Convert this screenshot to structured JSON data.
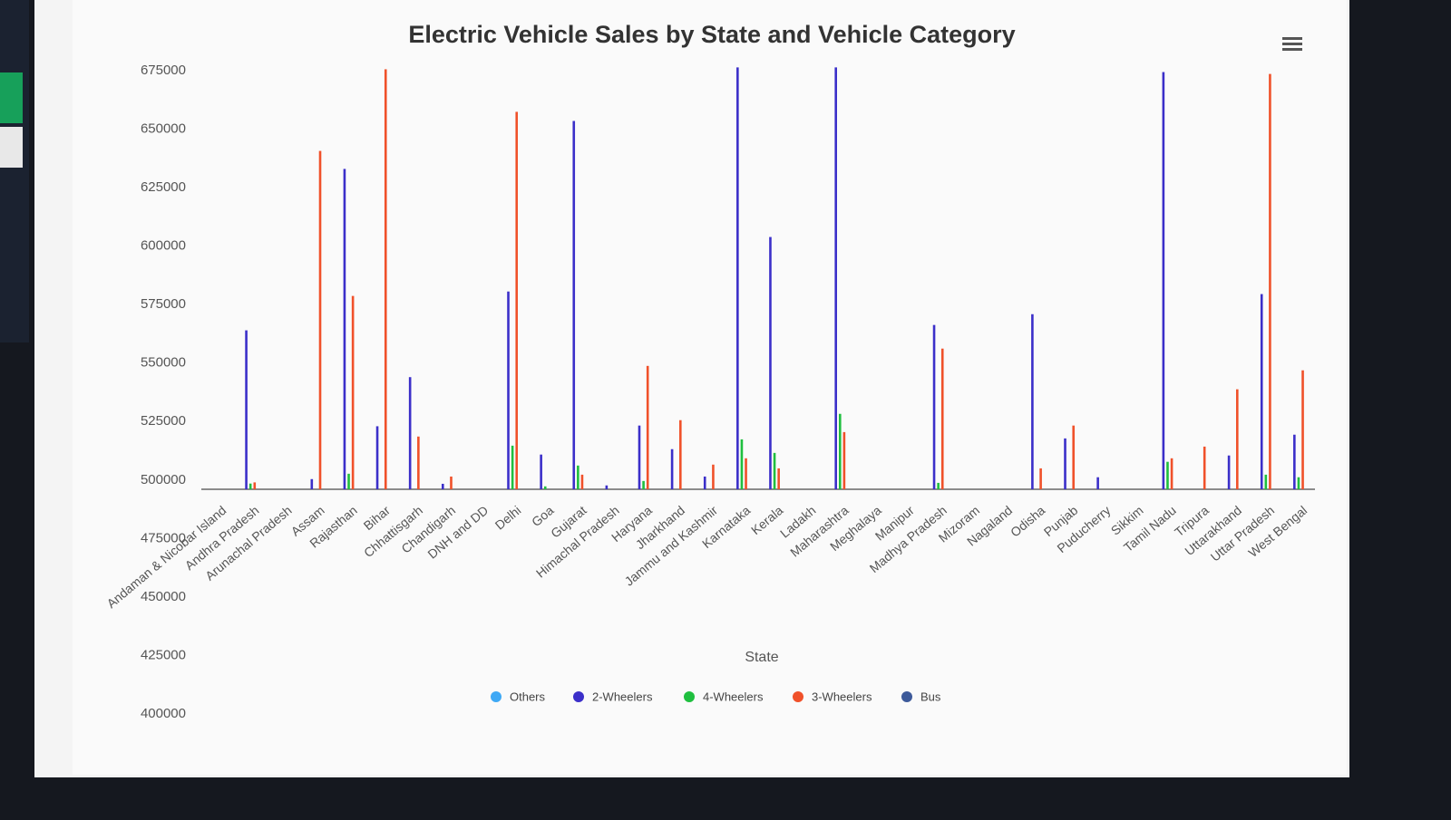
{
  "chart_data": {
    "type": "bar",
    "title": "Electric Vehicle Sales by State and Vehicle Category",
    "x_label": "State",
    "categories": [
      "Andaman & Nicobar Island",
      "Andhra Pradesh",
      "Arunachal Pradesh",
      "Assam",
      "Rajasthan",
      "Bihar",
      "Chhattisgarh",
      "Chandigarh",
      "DNH and DD",
      "Delhi",
      "Goa",
      "Gujarat",
      "Himachal Pradesh",
      "Haryana",
      "Jharkhand",
      "Jammu and Kashmir",
      "Karnataka",
      "Kerala",
      "Ladakh",
      "Maharashtra",
      "Meghalaya",
      "Manipur",
      "Madhya Pradesh",
      "Mizoram",
      "Nagaland",
      "Odisha",
      "Punjab",
      "Puducherry",
      "Sikkim",
      "Tamil Nadu",
      "Tripura",
      "Uttarakhand",
      "Uttar Pradesh",
      "West Bengal"
    ],
    "series": [
      {
        "name": "Others",
        "color": "#3fa9f5",
        "values": [
          null,
          null,
          null,
          null,
          null,
          null,
          null,
          null,
          null,
          null,
          null,
          null,
          null,
          null,
          null,
          null,
          null,
          null,
          null,
          null,
          null,
          null,
          null,
          null,
          null,
          null,
          null,
          null,
          null,
          null,
          null,
          null,
          null,
          null
        ]
      },
      {
        "name": "2-Wheelers",
        "color": "#3b2fc9",
        "values": [
          null,
          564000,
          null,
          500400,
          633000,
          523000,
          544000,
          498400,
          null,
          580600,
          510900,
          653500,
          497700,
          523300,
          513200,
          501500,
          676400,
          603900,
          null,
          676400,
          null,
          null,
          566300,
          null,
          null,
          570900,
          517800,
          501200,
          null,
          674400,
          null,
          510500,
          579500,
          519400
        ]
      },
      {
        "name": "4-Wheelers",
        "color": "#1fbf3f",
        "values": [
          null,
          498500,
          null,
          null,
          502700,
          null,
          null,
          null,
          null,
          514700,
          497300,
          506200,
          null,
          499600,
          null,
          null,
          517400,
          511600,
          null,
          528300,
          null,
          null,
          498800,
          null,
          null,
          null,
          null,
          null,
          null,
          507800,
          null,
          null,
          502300,
          501200
        ]
      },
      {
        "name": "3-Wheelers",
        "color": "#f0512a",
        "values": [
          null,
          499000,
          null,
          640700,
          578700,
          675600,
          518600,
          501500,
          null,
          657400,
          null,
          502300,
          null,
          548800,
          525600,
          506600,
          509300,
          505000,
          null,
          520500,
          null,
          null,
          556200,
          null,
          null,
          505000,
          523300,
          null,
          null,
          509300,
          514300,
          538800,
          673600,
          546900
        ]
      },
      {
        "name": "Bus",
        "color": "#3d5a9a",
        "values": [
          null,
          null,
          null,
          null,
          null,
          null,
          null,
          null,
          null,
          null,
          null,
          null,
          null,
          null,
          null,
          null,
          null,
          null,
          null,
          null,
          null,
          null,
          null,
          null,
          null,
          null,
          null,
          null,
          null,
          null,
          null,
          null,
          null,
          null
        ]
      }
    ],
    "ylim": [
      400000,
      675000
    ],
    "yticks": [
      400000,
      425000,
      450000,
      475000,
      500000,
      525000,
      550000,
      575000,
      600000,
      625000,
      650000,
      675000
    ]
  }
}
